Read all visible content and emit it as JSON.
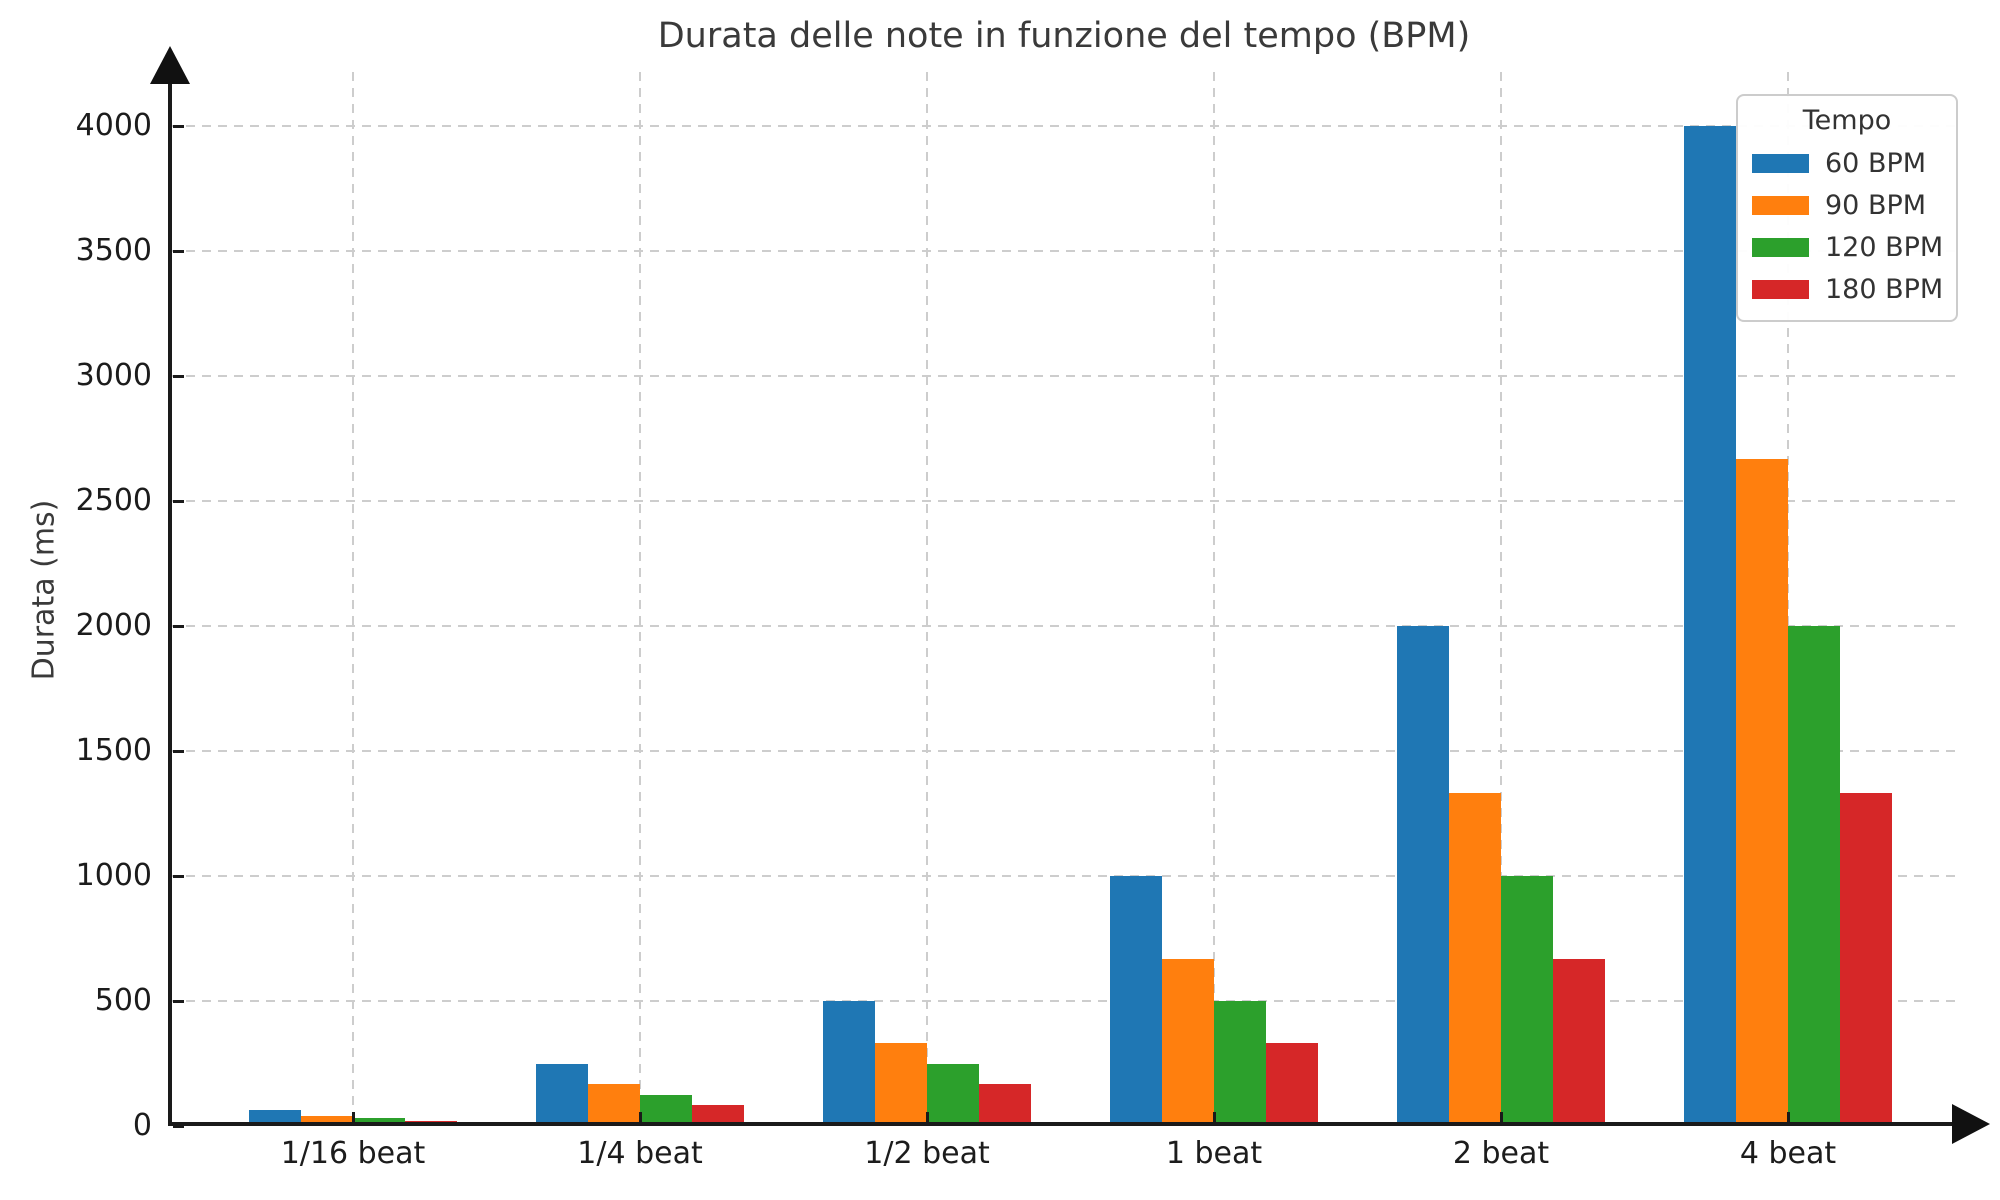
{
  "chart_data": {
    "type": "bar",
    "title": "Durata delle note in funzione del tempo (BPM)",
    "ylabel": "Durata (ms)",
    "xlabel": "",
    "categories": [
      "1/16 beat",
      "1/4 beat",
      "1/2 beat",
      "1 beat",
      "2 beat",
      "4 beat"
    ],
    "series": [
      {
        "name": "60 BPM",
        "color": "#1f77b4",
        "values": [
          62.5,
          250,
          500,
          1000,
          2000,
          4000
        ]
      },
      {
        "name": "90 BPM",
        "color": "#ff7f0e",
        "values": [
          41.7,
          166.7,
          333.3,
          666.7,
          1333.3,
          2666.7
        ]
      },
      {
        "name": "120 BPM",
        "color": "#2ca02c",
        "values": [
          31.3,
          125,
          250,
          500,
          1000,
          2000
        ]
      },
      {
        "name": "180 BPM",
        "color": "#d62728",
        "values": [
          20.8,
          83.3,
          166.7,
          333.3,
          666.7,
          1333.3
        ]
      }
    ],
    "yticks": [
      0,
      500,
      1000,
      1500,
      2000,
      2500,
      3000,
      3500,
      4000
    ],
    "ylim": [
      0,
      4300
    ],
    "grid": "dashed",
    "legend": {
      "title": "Tempo",
      "position": "upper right"
    },
    "colors": {
      "axis": "#1a1a1a",
      "grid": "#cdcdcd",
      "title_text": "#3a3a3a",
      "tick_text": "#1c1c1c",
      "background": "#ffffff"
    }
  }
}
